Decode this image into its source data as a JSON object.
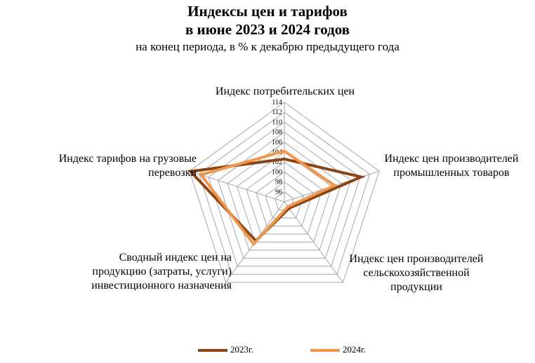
{
  "chart_data": {
    "type": "radar",
    "title_line1": "Индексы цен и тарифов",
    "title_line2": "в июне 2023 и 2024 годов",
    "subtitle": "на конец периода, в % к декабрю предыдущего года",
    "axes": [
      {
        "label": "Индекс потребительских  цен",
        "lines": [
          "Индекс потребительских  цен"
        ]
      },
      {
        "label": "Индекс цен производителей промышленных  товаров",
        "lines": [
          "Индекс цен производителей",
          "промышленных  товаров"
        ]
      },
      {
        "label": "Индекс цен производителей сельскохозяйственной продукции",
        "lines": [
          "Индекс цен производителей",
          "сельскохозяйственной",
          "продукции"
        ]
      },
      {
        "label": "Сводный индекс цен на продукцию (затраты, услуги) инвестиционного  назначения",
        "lines": [
          "Сводный индекс цен на",
          "продукцию (затраты, услуги)",
          "инвестиционного  назначения"
        ]
      },
      {
        "label": "Индекс тарифов на грузовые перевозки",
        "lines": [
          "Индекс тарифов на грузовые",
          "перевозки"
        ]
      }
    ],
    "r_ticks": [
      "96",
      "98",
      "100",
      "102",
      "104",
      "106",
      "108",
      "110",
      "112",
      "114"
    ],
    "r_range": [
      94,
      114
    ],
    "series": [
      {
        "name": "2023г.",
        "color": "#8B4513",
        "values": [
          102.6,
          110.2,
          95.6,
          103.7,
          113.8
        ]
      },
      {
        "name": "2024г.",
        "color": "#F0954A",
        "values": [
          104.2,
          104.6,
          95.2,
          104.5,
          111.6
        ]
      }
    ],
    "grid_color": "#A6A6A6"
  }
}
